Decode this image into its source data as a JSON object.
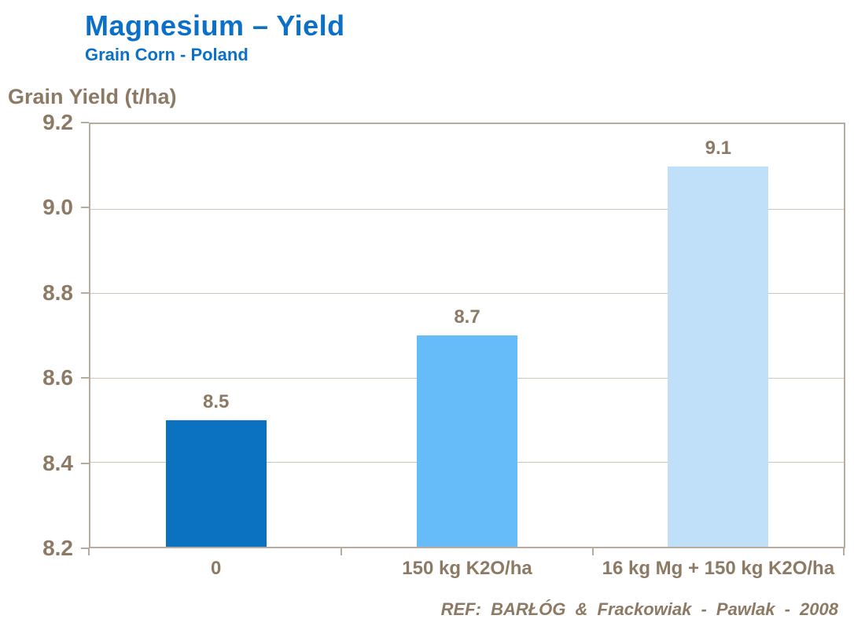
{
  "header": {
    "title": "Magnesium – Yield",
    "subtitle": "Grain Corn - Poland"
  },
  "chart_data": {
    "type": "bar",
    "title": "Magnesium – Yield",
    "subtitle": "Grain Corn - Poland",
    "ylabel": "Grain Yield (t/ha)",
    "xlabel": "",
    "categories": [
      "0",
      "150 kg K2O/ha",
      "16 kg Mg + 150 kg K2O/ha"
    ],
    "values": [
      8.5,
      8.7,
      9.1
    ],
    "data_labels": [
      "8.5",
      "8.7",
      "9.1"
    ],
    "bar_colors": [
      "#0b72c2",
      "#66bbf9",
      "#c0e0fa"
    ],
    "ylim": [
      8.2,
      9.2
    ],
    "yticks": [
      9.2,
      9.0,
      8.8,
      8.6,
      8.4,
      8.2
    ],
    "ytick_labels": [
      "9.2",
      "9.0",
      "8.8",
      "8.6",
      "8.4",
      "8.2"
    ],
    "grid": true,
    "legend": false
  },
  "footer": {
    "reference": "REF:  BARŁÓG & Frackowiak - Pawlak - 2008"
  },
  "colors": {
    "title_blue": "#0b70c7",
    "text_brown": "#8c7a64",
    "axis": "#b7ab9e",
    "gridline": "#cdc3b6"
  }
}
